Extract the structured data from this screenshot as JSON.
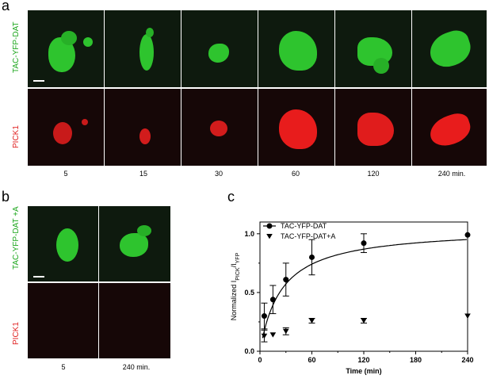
{
  "panel_a": {
    "letter": "a",
    "row_green_label": "TAC-YFP-DAT",
    "row_red_label": "PICK1",
    "time_labels": [
      "5",
      "15",
      "30",
      "60",
      "120",
      "240 min."
    ]
  },
  "panel_b": {
    "letter": "b",
    "row_green_label": "TAC-YFP-DAT +A",
    "row_red_label": "PICK1",
    "time_labels": [
      "5",
      "240 min."
    ]
  },
  "panel_c": {
    "letter": "c"
  },
  "colors": {
    "green_label": "#1aa51a",
    "red_label": "#e02020",
    "green_signal": "#2ec42e",
    "red_signal": "#e81c1c"
  },
  "chart_data": {
    "type": "scatter",
    "xlabel": "Time (min)",
    "ylabel_main": "Normalized I",
    "ylabel_sub1": "PICK",
    "ylabel_sep": "/I",
    "ylabel_sub2": "YFP",
    "xlim": [
      0,
      240
    ],
    "ylim": [
      0,
      1.1
    ],
    "x_ticks": [
      0,
      60,
      120,
      180,
      240
    ],
    "y_ticks": [
      0.0,
      0.5,
      1.0
    ],
    "x_tick_labels": [
      "0",
      "60",
      "120",
      "180",
      "240"
    ],
    "y_tick_labels": [
      "0.0",
      "0.5",
      "1.0"
    ],
    "legend_position": "top-left",
    "series": [
      {
        "name": "TAC-YFP-DAT",
        "marker": "circle",
        "x": [
          5,
          15,
          30,
          60,
          120,
          240
        ],
        "y": [
          0.3,
          0.44,
          0.61,
          0.8,
          0.92,
          0.99
        ],
        "err": [
          0.11,
          0.12,
          0.14,
          0.15,
          0.08,
          0.0
        ]
      },
      {
        "name": "TAC-YFP-DAT+A",
        "marker": "triangle-down",
        "x": [
          5,
          15,
          30,
          60,
          120,
          240
        ],
        "y": [
          0.13,
          0.14,
          0.17,
          0.26,
          0.26,
          0.3
        ],
        "err": [
          0.05,
          0.0,
          0.03,
          0.02,
          0.02,
          0.0
        ]
      }
    ],
    "fit_curve": {
      "type": "saturating",
      "ymax": 1.05,
      "k": 25
    }
  }
}
